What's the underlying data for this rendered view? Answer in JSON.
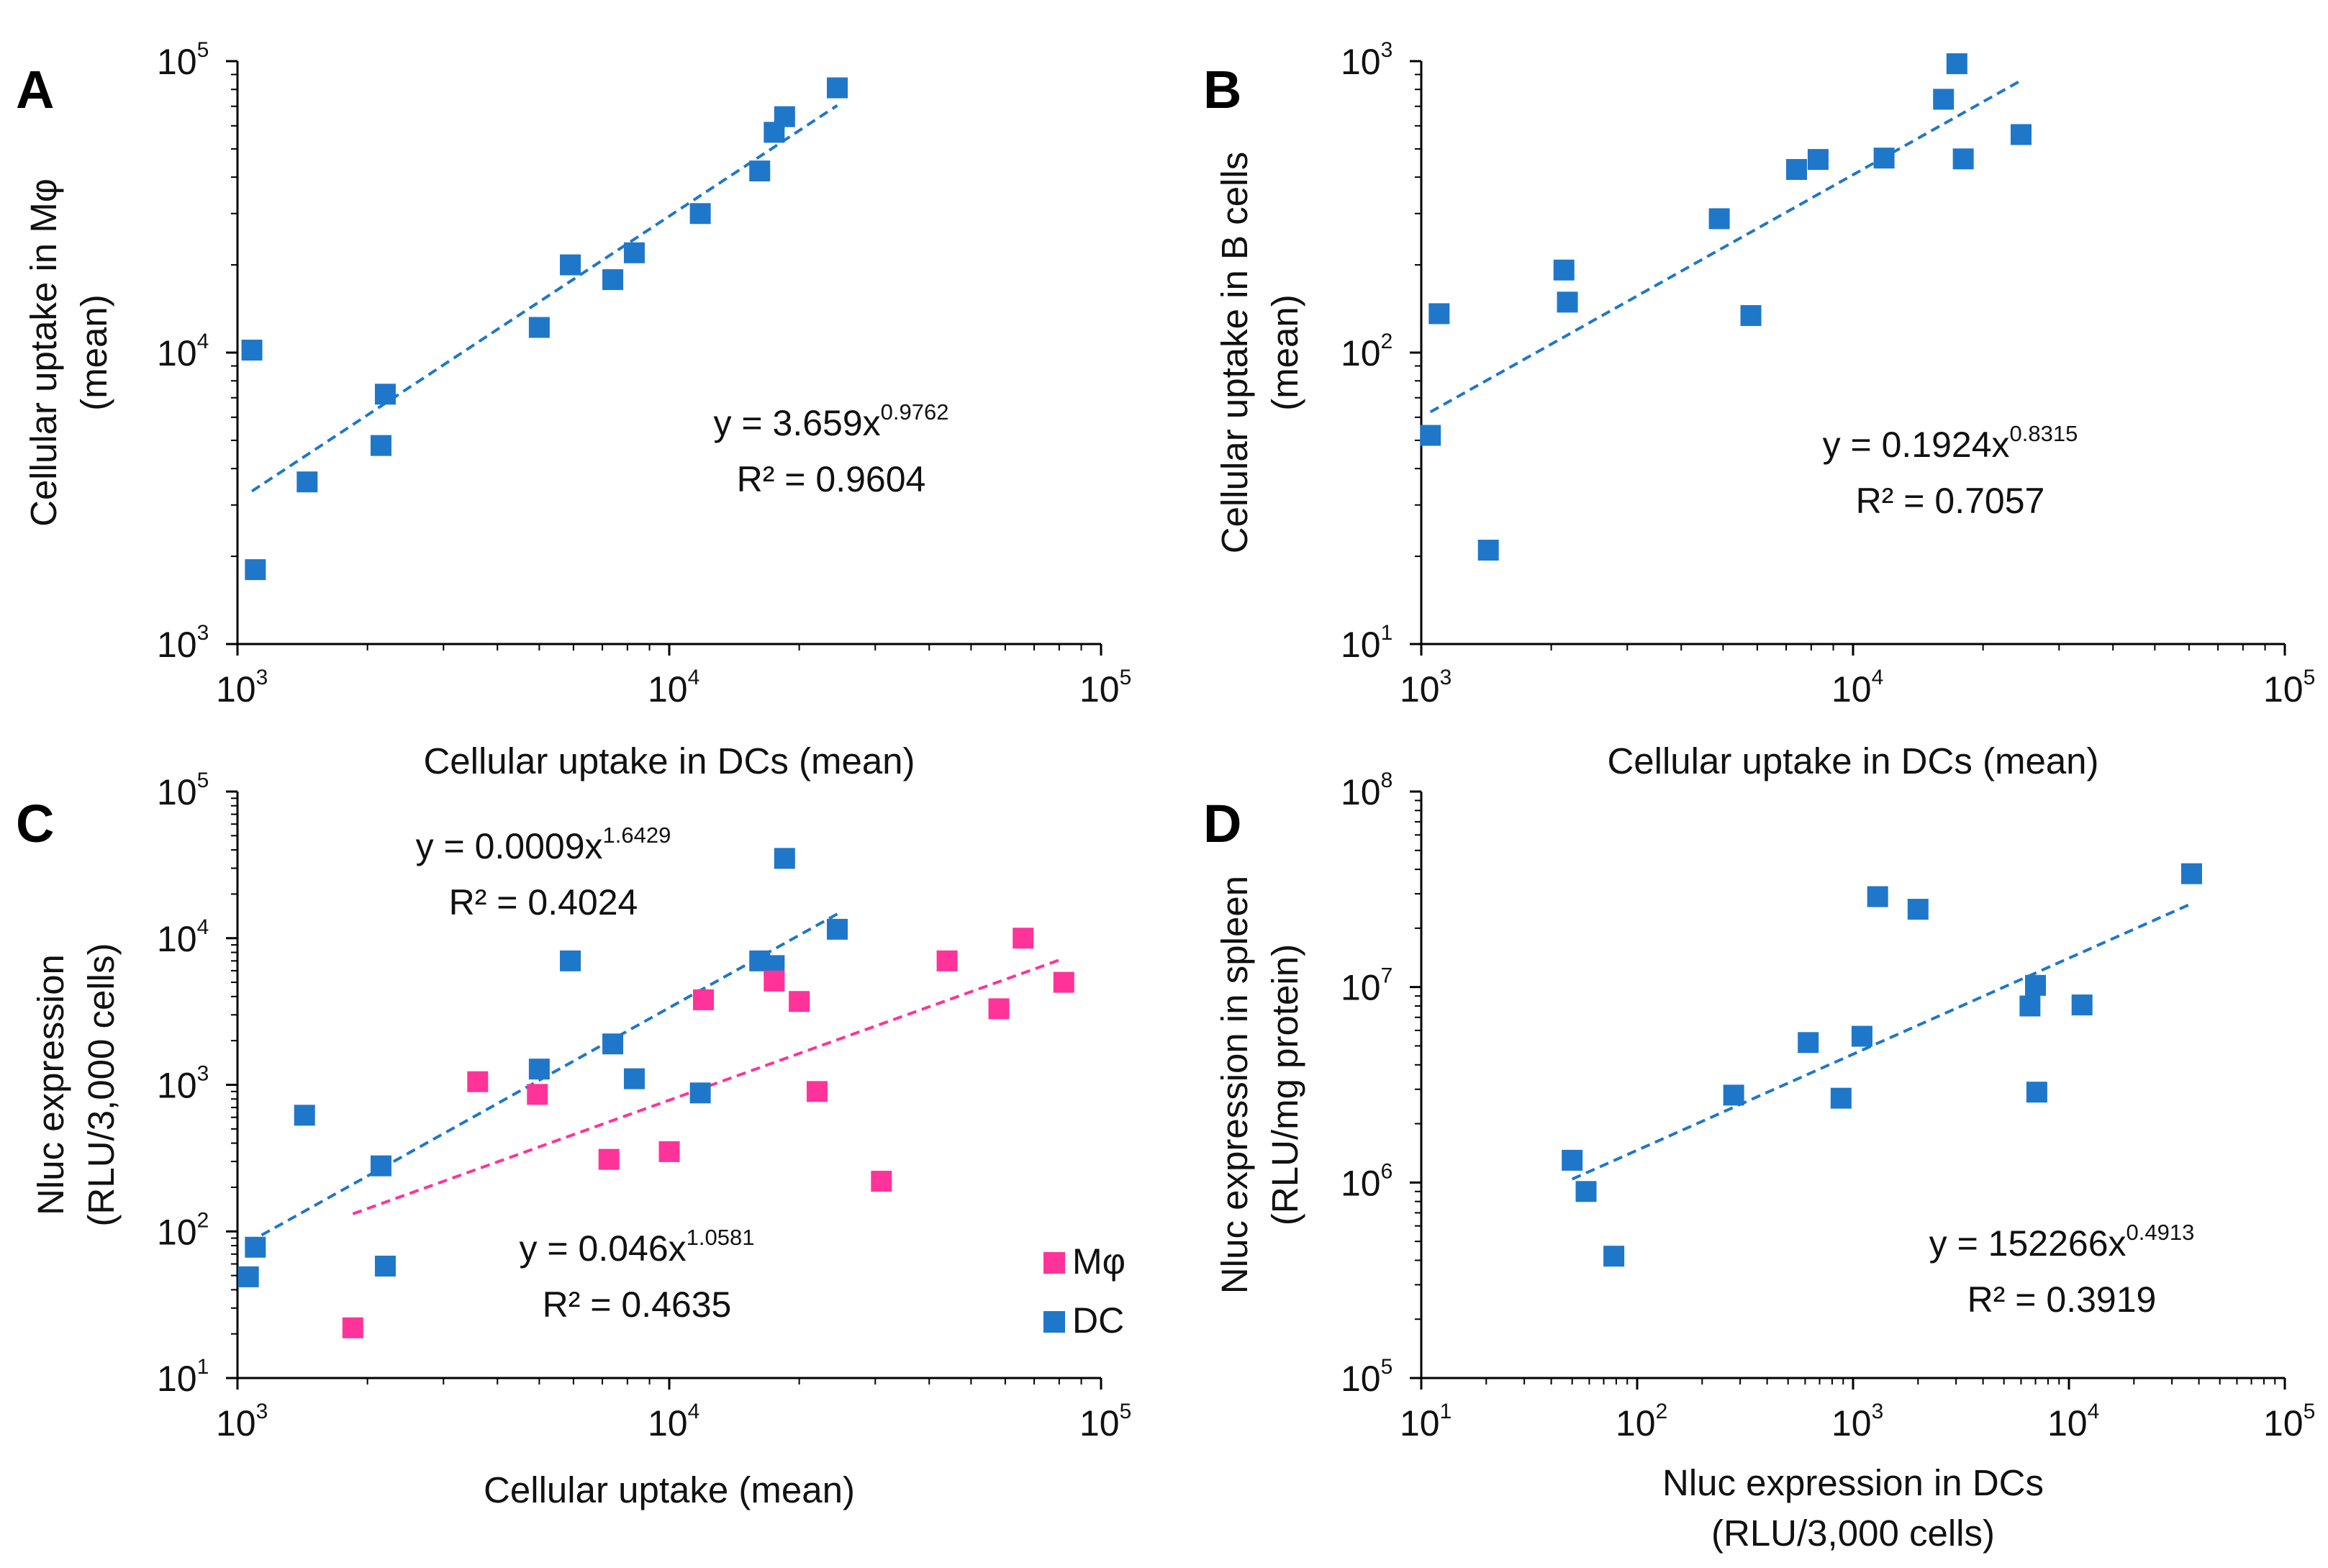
{
  "colors": {
    "dc": "#1f77c9",
    "mphi": "#ff3399",
    "axis": "#000000"
  },
  "chart_data": [
    {
      "panel": "A",
      "type": "scatter",
      "xscale": "log",
      "yscale": "log",
      "xlim": [
        1000,
        100000
      ],
      "ylim": [
        1000,
        100000
      ],
      "xticks": [
        {
          "base": "10",
          "exp": "3"
        },
        {
          "base": "10",
          "exp": "4"
        },
        {
          "base": "10",
          "exp": "5"
        }
      ],
      "yticks": [
        {
          "base": "10",
          "exp": "3"
        },
        {
          "base": "10",
          "exp": "4"
        },
        {
          "base": "10",
          "exp": "5"
        }
      ],
      "xlabel": "Cellular uptake in DCs (mean)",
      "ylabel": [
        "Cellular uptake in Mφ",
        "(mean)"
      ],
      "series": [
        {
          "name": "DC",
          "color": "#1f77c9",
          "points": [
            [
              1080,
              10200
            ],
            [
              1100,
              1800
            ],
            [
              1450,
              3600
            ],
            [
              2150,
              4800
            ],
            [
              2200,
              7200
            ],
            [
              5000,
              12200
            ],
            [
              5900,
              20000
            ],
            [
              7400,
              17800
            ],
            [
              8300,
              22000
            ],
            [
              11800,
              30000
            ],
            [
              16200,
              42000
            ],
            [
              17500,
              57000
            ],
            [
              18500,
              64500
            ],
            [
              24500,
              81000
            ]
          ],
          "fit": {
            "a": 3.659,
            "b": 0.9762,
            "x_range": [
              1080,
              24500
            ],
            "equation": "y = 3.659x",
            "exponent": "0.9762",
            "r2": "R² = 0.9604"
          }
        }
      ]
    },
    {
      "panel": "B",
      "type": "scatter",
      "xscale": "log",
      "yscale": "log",
      "xlim": [
        1000,
        100000
      ],
      "ylim": [
        10,
        1000
      ],
      "xticks": [
        {
          "base": "10",
          "exp": "3"
        },
        {
          "base": "10",
          "exp": "4"
        },
        {
          "base": "10",
          "exp": "5"
        }
      ],
      "yticks": [
        {
          "base": "10",
          "exp": "1"
        },
        {
          "base": "10",
          "exp": "2"
        },
        {
          "base": "10",
          "exp": "3"
        }
      ],
      "xlabel": "Cellular uptake in DCs (mean)",
      "ylabel": [
        "Cellular uptake in B cells",
        "(mean)"
      ],
      "series": [
        {
          "name": "DC",
          "color": "#1f77c9",
          "points": [
            [
              1050,
              52
            ],
            [
              1100,
              136
            ],
            [
              1430,
              21
            ],
            [
              2140,
              192
            ],
            [
              2180,
              149
            ],
            [
              4900,
              288
            ],
            [
              5800,
              134
            ],
            [
              7400,
              425
            ],
            [
              8300,
              460
            ],
            [
              11800,
              465
            ],
            [
              16200,
              740
            ],
            [
              17400,
              980
            ],
            [
              18000,
              462
            ],
            [
              24500,
              560
            ]
          ],
          "fit": {
            "a": 0.1924,
            "b": 0.8315,
            "x_range": [
              1050,
              24500
            ],
            "equation": "y = 0.1924x",
            "exponent": "0.8315",
            "r2": "R² = 0.7057"
          }
        }
      ]
    },
    {
      "panel": "C",
      "type": "scatter",
      "xscale": "log",
      "yscale": "log",
      "xlim": [
        1000,
        100000
      ],
      "ylim": [
        10,
        100000
      ],
      "xticks": [
        {
          "base": "10",
          "exp": "3"
        },
        {
          "base": "10",
          "exp": "4"
        },
        {
          "base": "10",
          "exp": "5"
        }
      ],
      "yticks": [
        {
          "base": "10",
          "exp": "1"
        },
        {
          "base": "10",
          "exp": "2"
        },
        {
          "base": "10",
          "exp": "3"
        },
        {
          "base": "10",
          "exp": "4"
        },
        {
          "base": "10",
          "exp": "5"
        }
      ],
      "xlabel": "Cellular uptake (mean)",
      "ylabel": [
        "Nluc expression",
        "(RLU/3,000 cells)"
      ],
      "legend": {
        "position": "bottom-right",
        "entries": [
          {
            "label": "Mφ",
            "color": "#ff3399"
          },
          {
            "label": "DC",
            "color": "#1f77c9"
          }
        ]
      },
      "series": [
        {
          "name": "DC",
          "color": "#1f77c9",
          "points": [
            [
              1060,
              49
            ],
            [
              1100,
              78
            ],
            [
              1430,
              620
            ],
            [
              2150,
              280
            ],
            [
              2200,
              58
            ],
            [
              5000,
              1280
            ],
            [
              5900,
              7000
            ],
            [
              7400,
              1900
            ],
            [
              8300,
              1100
            ],
            [
              11800,
              880
            ],
            [
              16200,
              7000
            ],
            [
              17500,
              6500
            ],
            [
              18500,
              35000
            ],
            [
              24500,
              11500
            ]
          ],
          "fit": {
            "a": 0.0009,
            "b": 1.6429,
            "x_range": [
              1060,
              24500
            ],
            "equation": "y = 0.0009x",
            "exponent": "1.6429",
            "r2": "R² = 0.4024"
          }
        },
        {
          "name": "Mφ",
          "color": "#ff3399",
          "points": [
            [
              1850,
              22
            ],
            [
              3600,
              1050
            ],
            [
              4950,
              860
            ],
            [
              7250,
              310
            ],
            [
              10000,
              350
            ],
            [
              12000,
              3800
            ],
            [
              17500,
              5100
            ],
            [
              20000,
              3700
            ],
            [
              22000,
              900
            ],
            [
              31000,
              220
            ],
            [
              44000,
              7000
            ],
            [
              58000,
              3300
            ],
            [
              66000,
              10000
            ],
            [
              82000,
              5000
            ]
          ],
          "fit": {
            "a": 0.046,
            "b": 1.0581,
            "x_range": [
              1850,
              82000
            ],
            "equation": "y = 0.046x",
            "exponent": "1.0581",
            "r2": "R² = 0.4635"
          }
        }
      ]
    },
    {
      "panel": "D",
      "type": "scatter",
      "xscale": "log",
      "yscale": "log",
      "xlim": [
        10,
        100000
      ],
      "ylim": [
        100000,
        100000000
      ],
      "xticks": [
        {
          "base": "10",
          "exp": "1"
        },
        {
          "base": "10",
          "exp": "2"
        },
        {
          "base": "10",
          "exp": "3"
        },
        {
          "base": "10",
          "exp": "4"
        },
        {
          "base": "10",
          "exp": "5"
        }
      ],
      "yticks": [
        {
          "base": "10",
          "exp": "5"
        },
        {
          "base": "10",
          "exp": "6"
        },
        {
          "base": "10",
          "exp": "7"
        },
        {
          "base": "10",
          "exp": "8"
        }
      ],
      "xlabel": [
        "Nluc expression in DCs",
        "(RLU/3,000 cells)"
      ],
      "ylabel": [
        "Nluc expression in spleen",
        "(RLU/mg protein)"
      ],
      "series": [
        {
          "name": "DC",
          "color": "#1f77c9",
          "points": [
            [
              50,
              1300000
            ],
            [
              58,
              900000
            ],
            [
              78,
              420000
            ],
            [
              280,
              2800000
            ],
            [
              620,
              5200000
            ],
            [
              880,
              2700000
            ],
            [
              1100,
              5600000
            ],
            [
              1300,
              29000000
            ],
            [
              2000,
              25000000
            ],
            [
              6600,
              8000000
            ],
            [
              7000,
              10200000
            ],
            [
              7100,
              2900000
            ],
            [
              11500,
              8100000
            ],
            [
              37000,
              38000000
            ]
          ],
          "fit": {
            "a": 152266,
            "b": 0.4913,
            "x_range": [
              50,
              37000
            ],
            "equation": "y = 152266x",
            "exponent": "0.4913",
            "r2": "R² = 0.3919"
          }
        }
      ]
    }
  ]
}
